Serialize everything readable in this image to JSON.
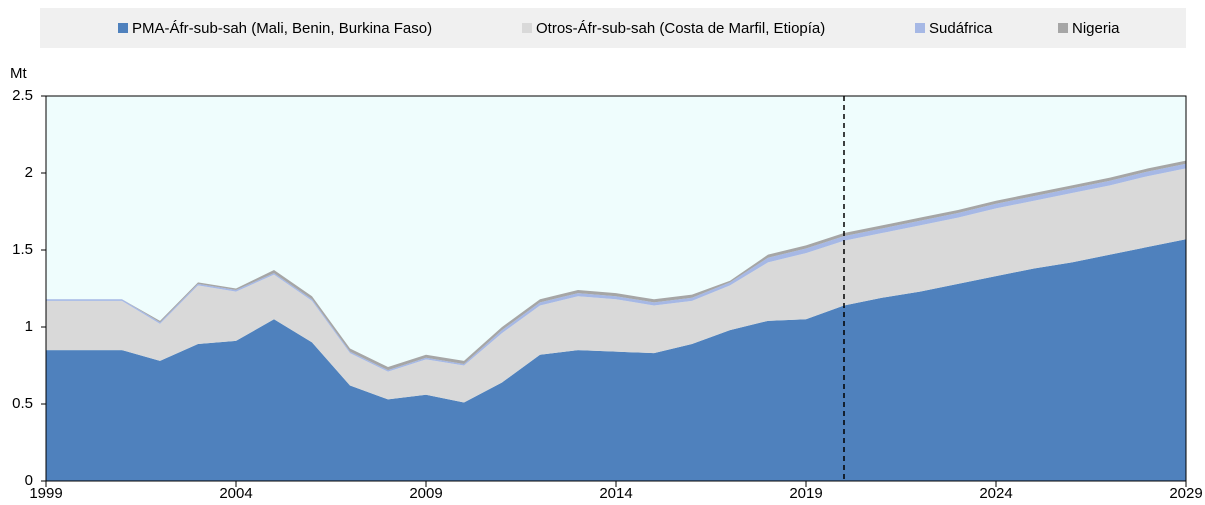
{
  "chart_data": {
    "type": "stacked_area",
    "y_unit": "Mt",
    "x": [
      1999,
      2000,
      2001,
      2002,
      2003,
      2004,
      2005,
      2006,
      2007,
      2008,
      2009,
      2010,
      2011,
      2012,
      2013,
      2014,
      2015,
      2016,
      2017,
      2018,
      2019,
      2020,
      2021,
      2022,
      2023,
      2024,
      2025,
      2026,
      2027,
      2028,
      2029
    ],
    "series": [
      {
        "name": "PMA-Áfr-sub-sah (Mali, Benin, Burkina Faso)",
        "color": "#4f81bd",
        "values": [
          0.85,
          0.85,
          0.85,
          0.78,
          0.89,
          0.91,
          1.05,
          0.9,
          0.62,
          0.53,
          0.56,
          0.51,
          0.64,
          0.82,
          0.85,
          0.84,
          0.83,
          0.89,
          0.98,
          1.04,
          1.05,
          1.14,
          1.19,
          1.23,
          1.28,
          1.33,
          1.38,
          1.42,
          1.47,
          1.52,
          1.57
        ]
      },
      {
        "name": "Otros-Áfr-sub-sah (Costa de Marfil, Etiopía)",
        "color": "#d9d9d9",
        "values": [
          0.32,
          0.32,
          0.32,
          0.24,
          0.38,
          0.32,
          0.29,
          0.27,
          0.21,
          0.18,
          0.23,
          0.24,
          0.32,
          0.32,
          0.35,
          0.34,
          0.31,
          0.28,
          0.29,
          0.38,
          0.43,
          0.42,
          0.42,
          0.43,
          0.43,
          0.44,
          0.44,
          0.45,
          0.45,
          0.46,
          0.46
        ]
      },
      {
        "name": "Sudáfrica",
        "color": "#a6b8e5",
        "values": [
          0.01,
          0.01,
          0.01,
          0.01,
          0.01,
          0.01,
          0.01,
          0.01,
          0.01,
          0.01,
          0.01,
          0.01,
          0.02,
          0.02,
          0.02,
          0.02,
          0.02,
          0.02,
          0.02,
          0.03,
          0.03,
          0.03,
          0.03,
          0.03,
          0.03,
          0.03,
          0.03,
          0.03,
          0.03,
          0.03,
          0.03
        ]
      },
      {
        "name": "Nigeria",
        "color": "#a6a6a6",
        "values": [
          0.0,
          0.0,
          0.0,
          0.01,
          0.01,
          0.01,
          0.02,
          0.02,
          0.02,
          0.02,
          0.02,
          0.02,
          0.02,
          0.02,
          0.02,
          0.02,
          0.02,
          0.02,
          0.01,
          0.02,
          0.02,
          0.02,
          0.02,
          0.02,
          0.02,
          0.02,
          0.02,
          0.02,
          0.02,
          0.02,
          0.02
        ]
      }
    ],
    "xlim": [
      1999,
      2029
    ],
    "xticks": [
      1999,
      2004,
      2009,
      2014,
      2019,
      2024,
      2029
    ],
    "ylim": [
      0,
      2.5
    ],
    "yticks": [
      0,
      0.5,
      1,
      1.5,
      2,
      2.5
    ],
    "vline": 2020,
    "plot_background": "#effdfd",
    "legend": "top"
  }
}
